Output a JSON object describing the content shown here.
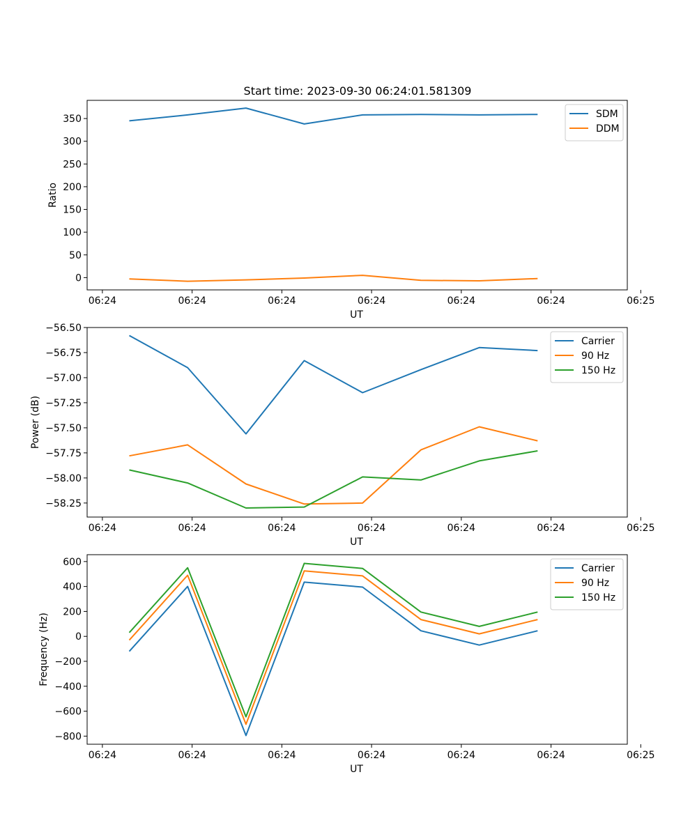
{
  "figure_title": "Start time: 2023-09-30 06:24:01.581309",
  "chart_data": [
    {
      "type": "line",
      "title": "Start time: 2023-09-30 06:24:01.581309",
      "xlabel": "UT",
      "ylabel": "Ratio",
      "xlim": [
        -0.47,
        5.55
      ],
      "ylim": [
        -27,
        390
      ],
      "x": [
        0,
        0.65,
        1.3,
        1.95,
        2.6,
        3.25,
        3.9,
        4.55
      ],
      "xticks": [
        -0.3,
        0.7,
        1.7,
        2.7,
        3.7,
        4.7,
        5.7
      ],
      "xtick_labels": [
        "06:24",
        "06:24",
        "06:24",
        "06:24",
        "06:24",
        "06:24",
        "06:25"
      ],
      "yticks": [
        0,
        50,
        100,
        150,
        200,
        250,
        300,
        350
      ],
      "ytick_labels": [
        "0",
        "50",
        "100",
        "150",
        "200",
        "250",
        "300",
        "350"
      ],
      "legend_position": "upper-right",
      "series": [
        {
          "name": "SDM",
          "color": "#1f77b4",
          "values": [
            345,
            358,
            373,
            338,
            358,
            359,
            358,
            359
          ]
        },
        {
          "name": "DDM",
          "color": "#ff7f0e",
          "values": [
            -3,
            -8,
            -5,
            -1,
            5,
            -6,
            -7,
            -2
          ]
        }
      ]
    },
    {
      "type": "line",
      "title": "",
      "xlabel": "UT",
      "ylabel": "Power (dB)",
      "xlim": [
        -0.47,
        5.55
      ],
      "ylim": [
        -58.39,
        -56.5
      ],
      "x": [
        0,
        0.65,
        1.3,
        1.95,
        2.6,
        3.25,
        3.9,
        4.55
      ],
      "xticks": [
        -0.3,
        0.7,
        1.7,
        2.7,
        3.7,
        4.7,
        5.7
      ],
      "xtick_labels": [
        "06:24",
        "06:24",
        "06:24",
        "06:24",
        "06:24",
        "06:24",
        "06:25"
      ],
      "yticks": [
        -56.5,
        -56.75,
        -57.0,
        -57.25,
        -57.5,
        -57.75,
        -58.0,
        -58.25
      ],
      "ytick_labels": [
        "−56.50",
        "−56.75",
        "−57.00",
        "−57.25",
        "−57.50",
        "−57.75",
        "−58.00",
        "−58.25"
      ],
      "legend_position": "upper-right",
      "series": [
        {
          "name": "Carrier",
          "color": "#1f77b4",
          "values": [
            -56.58,
            -56.9,
            -57.56,
            -56.83,
            -57.15,
            -56.92,
            -56.7,
            -56.73
          ]
        },
        {
          "name": "90 Hz",
          "color": "#ff7f0e",
          "values": [
            -57.78,
            -57.67,
            -58.06,
            -58.26,
            -58.25,
            -57.72,
            -57.49,
            -57.63
          ]
        },
        {
          "name": "150 Hz",
          "color": "#2ca02c",
          "values": [
            -57.92,
            -58.05,
            -58.3,
            -58.29,
            -57.99,
            -58.02,
            -57.83,
            -57.73
          ]
        }
      ]
    },
    {
      "type": "line",
      "title": "",
      "xlabel": "UT",
      "ylabel": "Frequency (Hz)",
      "xlim": [
        -0.47,
        5.55
      ],
      "ylim": [
        -865,
        655
      ],
      "x": [
        0,
        0.65,
        1.3,
        1.95,
        2.6,
        3.25,
        3.9,
        4.55
      ],
      "xticks": [
        -0.3,
        0.7,
        1.7,
        2.7,
        3.7,
        4.7,
        5.7
      ],
      "xtick_labels": [
        "06:24",
        "06:24",
        "06:24",
        "06:24",
        "06:24",
        "06:24",
        "06:25"
      ],
      "yticks": [
        -800,
        -600,
        -400,
        -200,
        0,
        200,
        400,
        600
      ],
      "ytick_labels": [
        "−800",
        "−600",
        "−400",
        "−200",
        "0",
        "200",
        "400",
        "600"
      ],
      "legend_position": "upper-right",
      "series": [
        {
          "name": "Carrier",
          "color": "#1f77b4",
          "values": [
            -120,
            400,
            -795,
            435,
            395,
            45,
            -70,
            45
          ]
        },
        {
          "name": "90 Hz",
          "color": "#ff7f0e",
          "values": [
            -30,
            490,
            -705,
            525,
            485,
            135,
            20,
            135
          ]
        },
        {
          "name": "150 Hz",
          "color": "#2ca02c",
          "values": [
            30,
            550,
            -645,
            585,
            545,
            195,
            80,
            195
          ]
        }
      ]
    }
  ]
}
